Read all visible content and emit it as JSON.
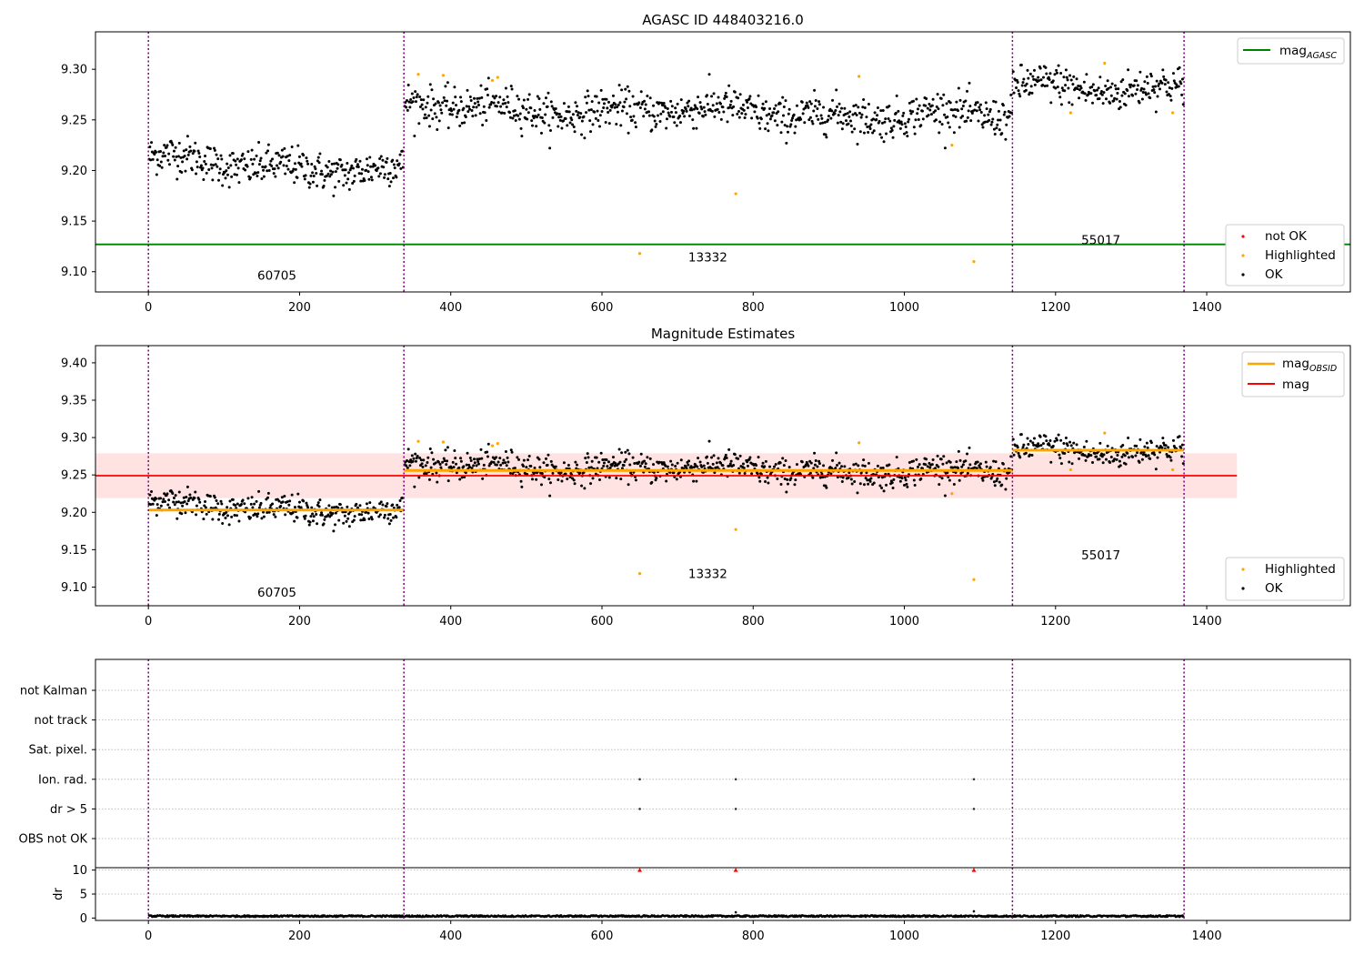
{
  "colors": {
    "ok": "#000000",
    "highlighted": "#ffa500",
    "not_ok": "#ff0000",
    "mag_agasc": "#008000",
    "mag_obsid": "#ffa500",
    "mag": "#ff0000",
    "mag_band": "#ffc0c0",
    "obs_boundary": "#800080",
    "grid": "#b0b0b0"
  },
  "chart_data": [
    {
      "id": "mag-panel",
      "type": "scatter",
      "title": "AGASC ID 448403216.0",
      "xlim": [
        -70,
        1590
      ],
      "ylim": [
        9.08,
        9.337
      ],
      "xticks": [
        0,
        200,
        400,
        600,
        800,
        1000,
        1200,
        1400
      ],
      "yticks": [
        "9.10",
        "9.15",
        "9.20",
        "9.25",
        "9.30"
      ],
      "legend_upper": {
        "placement": "upper-right",
        "entries": [
          {
            "label": "mag",
            "subscript": "AGASC",
            "color_key": "mag_agasc"
          }
        ]
      },
      "legend_lower": {
        "placement": "lower-right",
        "entries": [
          {
            "label": "not OK",
            "color_key": "not_ok"
          },
          {
            "label": "Highlighted",
            "color_key": "highlighted"
          },
          {
            "label": "OK",
            "color_key": "ok"
          }
        ]
      },
      "mag_agasc": 9.127,
      "segments": [
        {
          "obsid": "60705",
          "start": 0,
          "end": 338,
          "mean": 9.205,
          "trend": -0.012,
          "label_x": 170,
          "label_y": 9.092
        },
        {
          "obsid": "13332",
          "start": 338,
          "end": 1143,
          "mean": 9.258,
          "trend": -0.01,
          "label_x": 740,
          "label_y": 9.11
        },
        {
          "obsid": "55017",
          "start": 1143,
          "end": 1370,
          "mean": 9.283,
          "trend": -0.002,
          "label_x": 1260,
          "label_y": 9.127
        }
      ],
      "ok_scatter": 0.0095,
      "highlighted": [
        {
          "x": 357,
          "y": 9.295
        },
        {
          "x": 390,
          "y": 9.294
        },
        {
          "x": 455,
          "y": 9.289
        },
        {
          "x": 462,
          "y": 9.292
        },
        {
          "x": 650,
          "y": 9.118
        },
        {
          "x": 777,
          "y": 9.177
        },
        {
          "x": 940,
          "y": 9.293
        },
        {
          "x": 1063,
          "y": 9.225
        },
        {
          "x": 1092,
          "y": 9.11
        },
        {
          "x": 1220,
          "y": 9.257
        },
        {
          "x": 1265,
          "y": 9.306
        },
        {
          "x": 1355,
          "y": 9.257
        }
      ]
    },
    {
      "id": "estimates-panel",
      "type": "scatter",
      "title": "Magnitude Estimates",
      "xlim": [
        -70,
        1590
      ],
      "ylim": [
        9.075,
        9.423
      ],
      "xticks": [
        0,
        200,
        400,
        600,
        800,
        1000,
        1200,
        1400
      ],
      "yticks": [
        "9.10",
        "9.15",
        "9.20",
        "9.25",
        "9.30",
        "9.35",
        "9.40"
      ],
      "legend_upper": {
        "placement": "upper-right",
        "entries": [
          {
            "label": "mag",
            "subscript": "OBSID",
            "color_key": "mag_obsid"
          },
          {
            "label": "mag",
            "color_key": "mag"
          }
        ]
      },
      "legend_lower": {
        "placement": "lower-right",
        "entries": [
          {
            "label": "Highlighted",
            "color_key": "highlighted"
          },
          {
            "label": "OK",
            "color_key": "ok"
          }
        ]
      },
      "mag": 9.249,
      "mag_band": [
        9.219,
        9.279
      ],
      "mag_line_x": [
        -70,
        1440
      ],
      "segment_means": [
        {
          "obsid": "60705",
          "start": 0,
          "end": 338,
          "mag_obsid": 9.203,
          "label_x": 170,
          "label_y": 9.087
        },
        {
          "obsid": "13332",
          "start": 338,
          "end": 1143,
          "mag_obsid": 9.256,
          "label_x": 740,
          "label_y": 9.112
        },
        {
          "obsid": "55017",
          "start": 1143,
          "end": 1370,
          "mag_obsid": 9.283,
          "label_x": 1260,
          "label_y": 9.137
        }
      ]
    },
    {
      "id": "flags-panel",
      "type": "scatter",
      "xlim": [
        -70,
        1590
      ],
      "flag_rows": [
        "OBS not OK",
        "dr > 5",
        "Ion. rad.",
        "Sat. pixel.",
        "not track",
        "not Kalman"
      ],
      "flag_events": [
        {
          "row": "Ion. rad.",
          "x": [
            650,
            777,
            1092
          ]
        },
        {
          "row": "dr > 5",
          "x": [
            650,
            777,
            1092
          ]
        }
      ]
    },
    {
      "id": "dr-panel",
      "type": "scatter",
      "ylabel": "dr",
      "xlim": [
        -70,
        1590
      ],
      "ylim": [
        -0.5,
        10.5
      ],
      "xticks": [
        0,
        200,
        400,
        600,
        800,
        1000,
        1200,
        1400
      ],
      "yticks": [
        "0",
        "5",
        "10"
      ],
      "dr_baseline": 0.4,
      "dr_clipped": [
        {
          "x": 650,
          "y": 10
        },
        {
          "x": 777,
          "y": 10
        },
        {
          "x": 1092,
          "y": 10
        }
      ],
      "dr_spikes": [
        {
          "x": 777,
          "y": 1.2
        },
        {
          "x": 1092,
          "y": 1.4
        }
      ]
    }
  ],
  "obs_boundaries": [
    0,
    338,
    1143,
    1370
  ]
}
